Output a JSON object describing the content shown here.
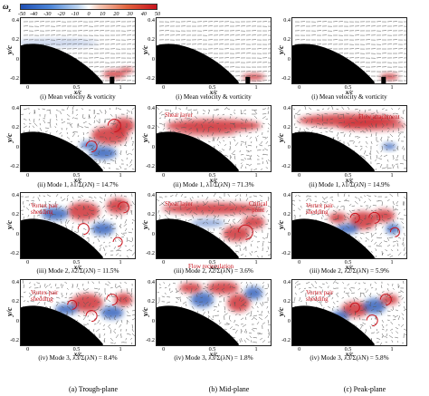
{
  "colorbar": {
    "symbol": "ω",
    "subscript": "z",
    "ticks": [
      "-50",
      "-40",
      "-30",
      "-20",
      "-10",
      "0",
      "10",
      "20",
      "30",
      "40",
      "50"
    ],
    "colors": {
      "neg": "#1f4fb4",
      "mid": "#ffffff",
      "pos": "#c8141e"
    }
  },
  "axes": {
    "x_label": "x/c",
    "y_label": "y/c",
    "y_ticks_row1": [
      "0.4",
      "0.2",
      "0",
      "-0.2"
    ],
    "y_ticks_row": [
      "0.4",
      "0.2",
      "0",
      "-0.2"
    ],
    "x_ticks": [
      "0",
      "0.5",
      "1"
    ]
  },
  "captions": {
    "r1c1": "(i) Mean velocity & vorticity",
    "r1c2": "(i) Mean velocity & vorticity",
    "r1c3": "(i) Mean velocity & vorticity",
    "r2c1": "(ii) Mode 1, λ1/Σ(λN) = 14.7%",
    "r2c2": "(ii) Mode 1, λ1/Σ(λN) = 71.3%",
    "r2c3": "(ii) Mode 1, λ1/Σ(λN) = 14.9%",
    "r3c1": "(iii) Mode 2, λ2/Σ(λN) = 11.5%",
    "r3c2": "(iii) Mode 2, λ2/Σ(λN) = 3.6%",
    "r3c3": "(iii) Mode 2, λ2/Σ(λN) = 5.9%",
    "r4c1": "(iv) Mode 3, λ3/Σ(λN) = 8.4%",
    "r4c2": "(iv) Mode 3, λ3/Σ(λN) = 1.8%",
    "r4c3": "(iv) Mode 3, λ3/Σ(λN) = 5.8%"
  },
  "columns": [
    "(a) Trough-plane",
    "(b) Mid-plane",
    "(c) Peak-plane"
  ],
  "annotations": {
    "shear_layer": "Shear layer",
    "flow_attachment": "Flow attachment",
    "vortex_pair_shedding_1": "Vortex pair",
    "vortex_pair_shedding_2": "shedding",
    "critical_point_1": "Critical",
    "critical_point_2": "point",
    "flow_recirculation": "Flow recirculation"
  }
}
